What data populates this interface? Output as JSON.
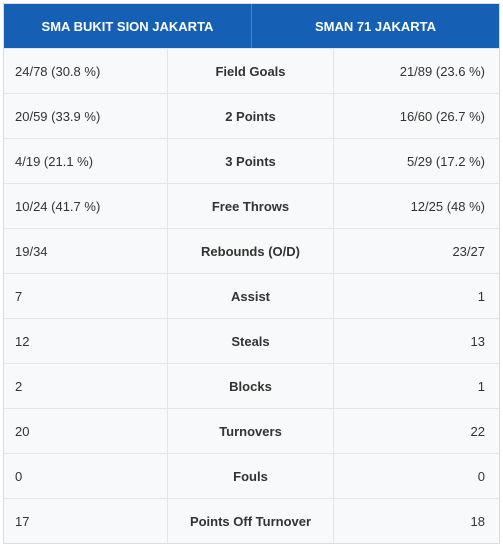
{
  "header": {
    "home_team": "SMA BUKIT SION JAKARTA",
    "away_team": "SMAN 71 JAKARTA"
  },
  "rows": [
    {
      "stat": "Field Goals",
      "home": "24/78 (30.8 %)",
      "away": "21/89 (23.6 %)"
    },
    {
      "stat": "2 Points",
      "home": "20/59 (33.9 %)",
      "away": "16/60 (26.7 %)"
    },
    {
      "stat": "3 Points",
      "home": "4/19 (21.1 %)",
      "away": "5/29 (17.2 %)"
    },
    {
      "stat": "Free Throws",
      "home": "10/24 (41.7 %)",
      "away": "12/25 (48 %)"
    },
    {
      "stat": "Rebounds (O/D)",
      "home": "19/34",
      "away": "23/27"
    },
    {
      "stat": "Assist",
      "home": "7",
      "away": "1"
    },
    {
      "stat": "Steals",
      "home": "12",
      "away": "13"
    },
    {
      "stat": "Blocks",
      "home": "2",
      "away": "1"
    },
    {
      "stat": "Turnovers",
      "home": "20",
      "away": "22"
    },
    {
      "stat": "Fouls",
      "home": "0",
      "away": "0"
    },
    {
      "stat": "Points Off Turnover",
      "home": "17",
      "away": "18"
    }
  ],
  "colors": {
    "header_bg": "#1560b5",
    "row_bg": "#f8f9fa",
    "border": "#e2e6ea"
  }
}
